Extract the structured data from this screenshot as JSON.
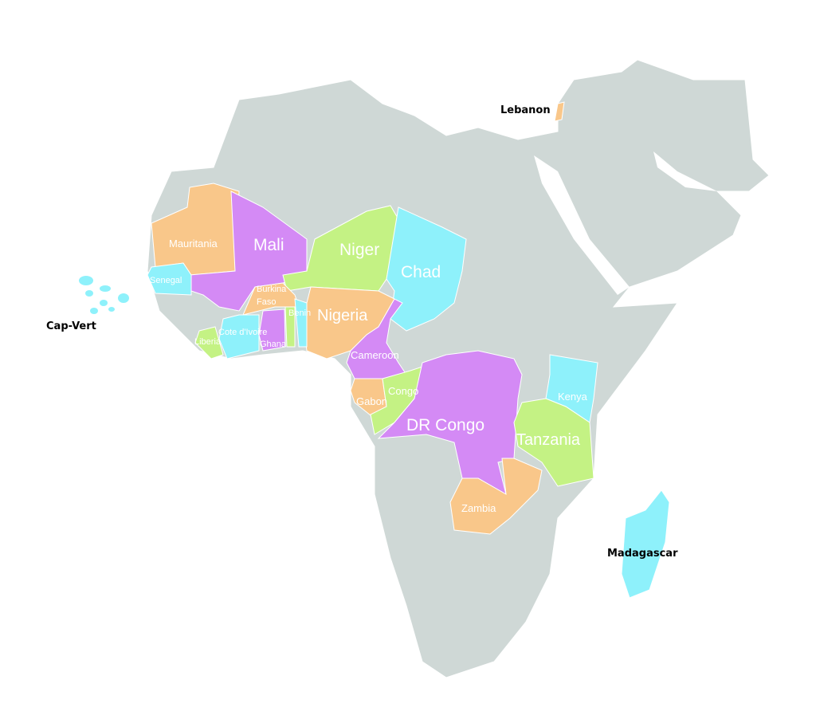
{
  "colors": {
    "land": "#cfd8d6",
    "orange": "#f9c78a",
    "purple": "#d48af5",
    "green": "#c4f284",
    "cyan": "#8ef1fb",
    "water": "#ffffff"
  },
  "countries": [
    {
      "id": "mauritania",
      "name": "Mauritania",
      "color": "orange"
    },
    {
      "id": "mali",
      "name": "Mali",
      "color": "purple"
    },
    {
      "id": "senegal",
      "name": "Senegal",
      "color": "cyan"
    },
    {
      "id": "niger",
      "name": "Niger",
      "color": "green"
    },
    {
      "id": "chad",
      "name": "Chad",
      "color": "cyan"
    },
    {
      "id": "nigeria",
      "name": "Nigeria",
      "color": "orange"
    },
    {
      "id": "burkina",
      "name": "Burkina Faso",
      "color": "orange"
    },
    {
      "id": "benin",
      "name": "Benin",
      "color": "cyan"
    },
    {
      "id": "togo",
      "name": "",
      "color": "green"
    },
    {
      "id": "ghana",
      "name": "Ghana",
      "color": "purple"
    },
    {
      "id": "civ",
      "name": "Cote d'Ivoire",
      "color": "cyan"
    },
    {
      "id": "liberia",
      "name": "Liberia",
      "color": "green"
    },
    {
      "id": "cameroon",
      "name": "Cameroon",
      "color": "purple"
    },
    {
      "id": "gabon",
      "name": "Gabon",
      "color": "orange"
    },
    {
      "id": "congo",
      "name": "Congo",
      "color": "green"
    },
    {
      "id": "drc",
      "name": "DR Congo",
      "color": "purple"
    },
    {
      "id": "kenya",
      "name": "Kenya",
      "color": "cyan"
    },
    {
      "id": "tanzania",
      "name": "Tanzania",
      "color": "green"
    },
    {
      "id": "zambia",
      "name": "Zambia",
      "color": "orange"
    },
    {
      "id": "madagascar",
      "name": "Madagascar",
      "color": "cyan"
    },
    {
      "id": "lebanon",
      "name": "Lebanon",
      "color": "orange"
    },
    {
      "id": "capvert",
      "name": "Cap-Vert",
      "color": "cyan"
    }
  ],
  "labels": {
    "mauritania": "Mauritania",
    "mali": "Mali",
    "senegal": "Senegal",
    "niger": "Niger",
    "chad": "Chad",
    "nigeria": "Nigeria",
    "burkina_1": "Burkina",
    "burkina_2": "Faso",
    "benin": "Benin",
    "ghana": "Ghana",
    "civ": "Cote d'Ivoire",
    "liberia": "Liberia",
    "cameroon": "Cameroon",
    "gabon": "Gabon",
    "congo": "Congo",
    "drc": "DR Congo",
    "kenya": "Kenya",
    "tanzania": "Tanzania",
    "zambia": "Zambia",
    "madagascar": "Madagascar",
    "lebanon": "Lebanon",
    "capvert": "Cap-Vert"
  }
}
